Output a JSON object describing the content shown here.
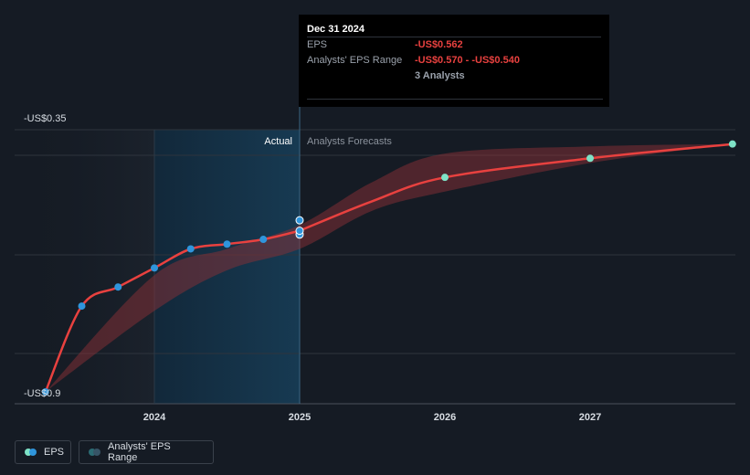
{
  "chart_data": {
    "type": "line",
    "y_top_label": "-US$0.35",
    "y_bottom_label": "-US$0.9",
    "ylim": [
      -0.9,
      -0.35
    ],
    "x_ticks": [
      "2024",
      "2025",
      "2026",
      "2027"
    ],
    "region_labels": {
      "actual": "Actual",
      "forecast": "Analysts Forecasts"
    },
    "series": [
      {
        "name": "EPS",
        "actual": [
          {
            "x": 2023.25,
            "y": -0.9
          },
          {
            "x": 2023.5,
            "y": -0.72
          },
          {
            "x": 2023.75,
            "y": -0.68
          },
          {
            "x": 2024.0,
            "y": -0.64
          },
          {
            "x": 2024.25,
            "y": -0.6
          },
          {
            "x": 2024.5,
            "y": -0.59
          },
          {
            "x": 2024.75,
            "y": -0.58
          },
          {
            "x": 2025.0,
            "y": -0.57
          },
          {
            "x": 2025.0,
            "y": -0.54
          },
          {
            "x": 2025.0,
            "y": -0.562
          }
        ],
        "forecast": [
          {
            "x": 2026.0,
            "y": -0.45
          },
          {
            "x": 2027.0,
            "y": -0.41
          },
          {
            "x": 2027.98,
            "y": -0.38
          }
        ]
      }
    ],
    "range_band": {
      "name": "Analysts' EPS Range",
      "x": [
        2023.25,
        2024.0,
        2024.5,
        2025.0,
        2025.5,
        2026.0,
        2027.0,
        2027.98
      ],
      "low": [
        -0.9,
        -0.73,
        -0.645,
        -0.6,
        -0.52,
        -0.48,
        -0.42,
        -0.38
      ],
      "high": [
        -0.9,
        -0.655,
        -0.6,
        -0.55,
        -0.46,
        -0.4,
        -0.385,
        -0.38
      ]
    },
    "legend": [
      "EPS",
      "Analysts' EPS Range"
    ],
    "legend_position": "bottom-left",
    "grid": true
  },
  "tooltip": {
    "date": "Dec 31 2024",
    "eps_label": "EPS",
    "eps_value": "-US$0.562",
    "range_label": "Analysts' EPS Range",
    "range_value": "-US$0.570 - -US$0.540",
    "analysts": "3 Analysts"
  },
  "legend": {
    "eps": "EPS",
    "range": "Analysts' EPS Range"
  },
  "colors": {
    "background": "#151b24",
    "eps_line": "#e8413f",
    "actual_dot": "#2f95dc",
    "forecast_dot": "#7ee2c6",
    "band": "#8a2f36",
    "actual_shade": "#143246",
    "grid": "#2e343d"
  }
}
